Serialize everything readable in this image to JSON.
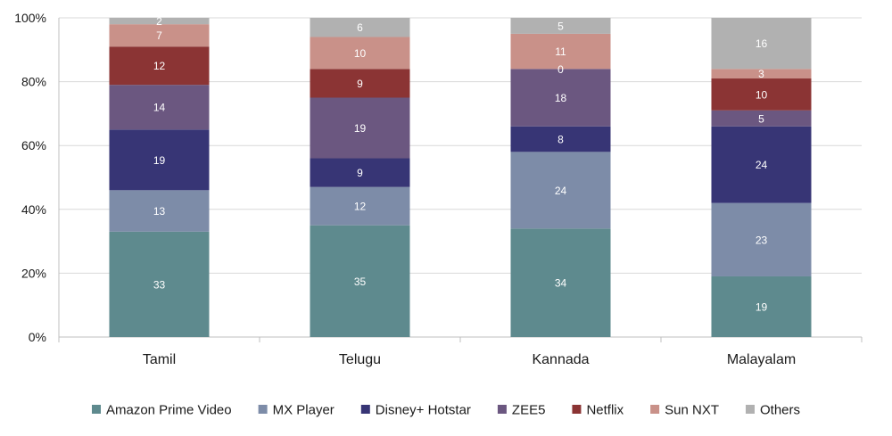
{
  "chart_data": {
    "type": "bar",
    "stacked": true,
    "percent": true,
    "categories": [
      "Tamil",
      "Telugu",
      "Kannada",
      "Malayalam"
    ],
    "ylim": [
      0,
      100
    ],
    "y_ticks": [
      "0%",
      "20%",
      "40%",
      "60%",
      "80%",
      "100%"
    ],
    "grid": true,
    "legend": "bottom",
    "title": "",
    "xlabel": "",
    "ylabel": "",
    "series": [
      {
        "name": "Amazon Prime Video",
        "color": "#5e8a8e",
        "values": [
          33,
          35,
          34,
          19
        ],
        "label_color": "#ffffff"
      },
      {
        "name": "MX Player",
        "color": "#7d8ca8",
        "values": [
          13,
          12,
          24,
          23
        ],
        "label_color": "#ffffff"
      },
      {
        "name": "Disney+ Hotstar",
        "color": "#373575",
        "values": [
          19,
          9,
          8,
          24
        ],
        "label_color": "#ffffff"
      },
      {
        "name": "ZEE5",
        "color": "#6b5780",
        "values": [
          14,
          19,
          18,
          5
        ],
        "label_color": "#ffffff"
      },
      {
        "name": "Netflix",
        "color": "#8b3434",
        "values": [
          12,
          9,
          0,
          10
        ],
        "label_color": "#ffffff"
      },
      {
        "name": "Sun NXT",
        "color": "#c99189",
        "values": [
          7,
          10,
          11,
          3
        ],
        "label_color": "#ffffff"
      },
      {
        "name": "Others",
        "color": "#b1b1b1",
        "values": [
          2,
          6,
          5,
          16
        ],
        "label_color": "#ffffff"
      }
    ]
  }
}
